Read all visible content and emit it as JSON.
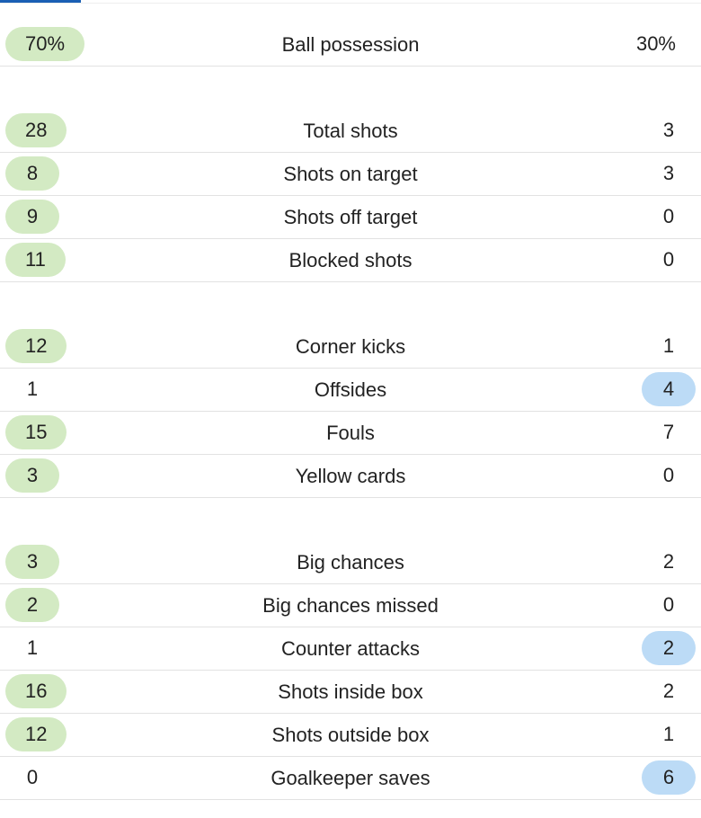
{
  "groups": [
    {
      "rows": [
        {
          "label": "Ball possession",
          "home": "70%",
          "away": "30%",
          "highlight": "home"
        }
      ]
    },
    {
      "rows": [
        {
          "label": "Total shots",
          "home": 28,
          "away": 3,
          "highlight": "home"
        },
        {
          "label": "Shots on target",
          "home": 8,
          "away": 3,
          "highlight": "home"
        },
        {
          "label": "Shots off target",
          "home": 9,
          "away": 0,
          "highlight": "home"
        },
        {
          "label": "Blocked shots",
          "home": 11,
          "away": 0,
          "highlight": "home"
        }
      ]
    },
    {
      "rows": [
        {
          "label": "Corner kicks",
          "home": 12,
          "away": 1,
          "highlight": "home"
        },
        {
          "label": "Offsides",
          "home": 1,
          "away": 4,
          "highlight": "away"
        },
        {
          "label": "Fouls",
          "home": 15,
          "away": 7,
          "highlight": "home"
        },
        {
          "label": "Yellow cards",
          "home": 3,
          "away": 0,
          "highlight": "home"
        }
      ]
    },
    {
      "rows": [
        {
          "label": "Big chances",
          "home": 3,
          "away": 2,
          "highlight": "home"
        },
        {
          "label": "Big chances missed",
          "home": 2,
          "away": 0,
          "highlight": "home"
        },
        {
          "label": "Counter attacks",
          "home": 1,
          "away": 2,
          "highlight": "away"
        },
        {
          "label": "Shots inside box",
          "home": 16,
          "away": 2,
          "highlight": "home"
        },
        {
          "label": "Shots outside box",
          "home": 12,
          "away": 1,
          "highlight": "home"
        },
        {
          "label": "Goalkeeper saves",
          "home": 0,
          "away": 6,
          "highlight": "away"
        }
      ]
    }
  ]
}
